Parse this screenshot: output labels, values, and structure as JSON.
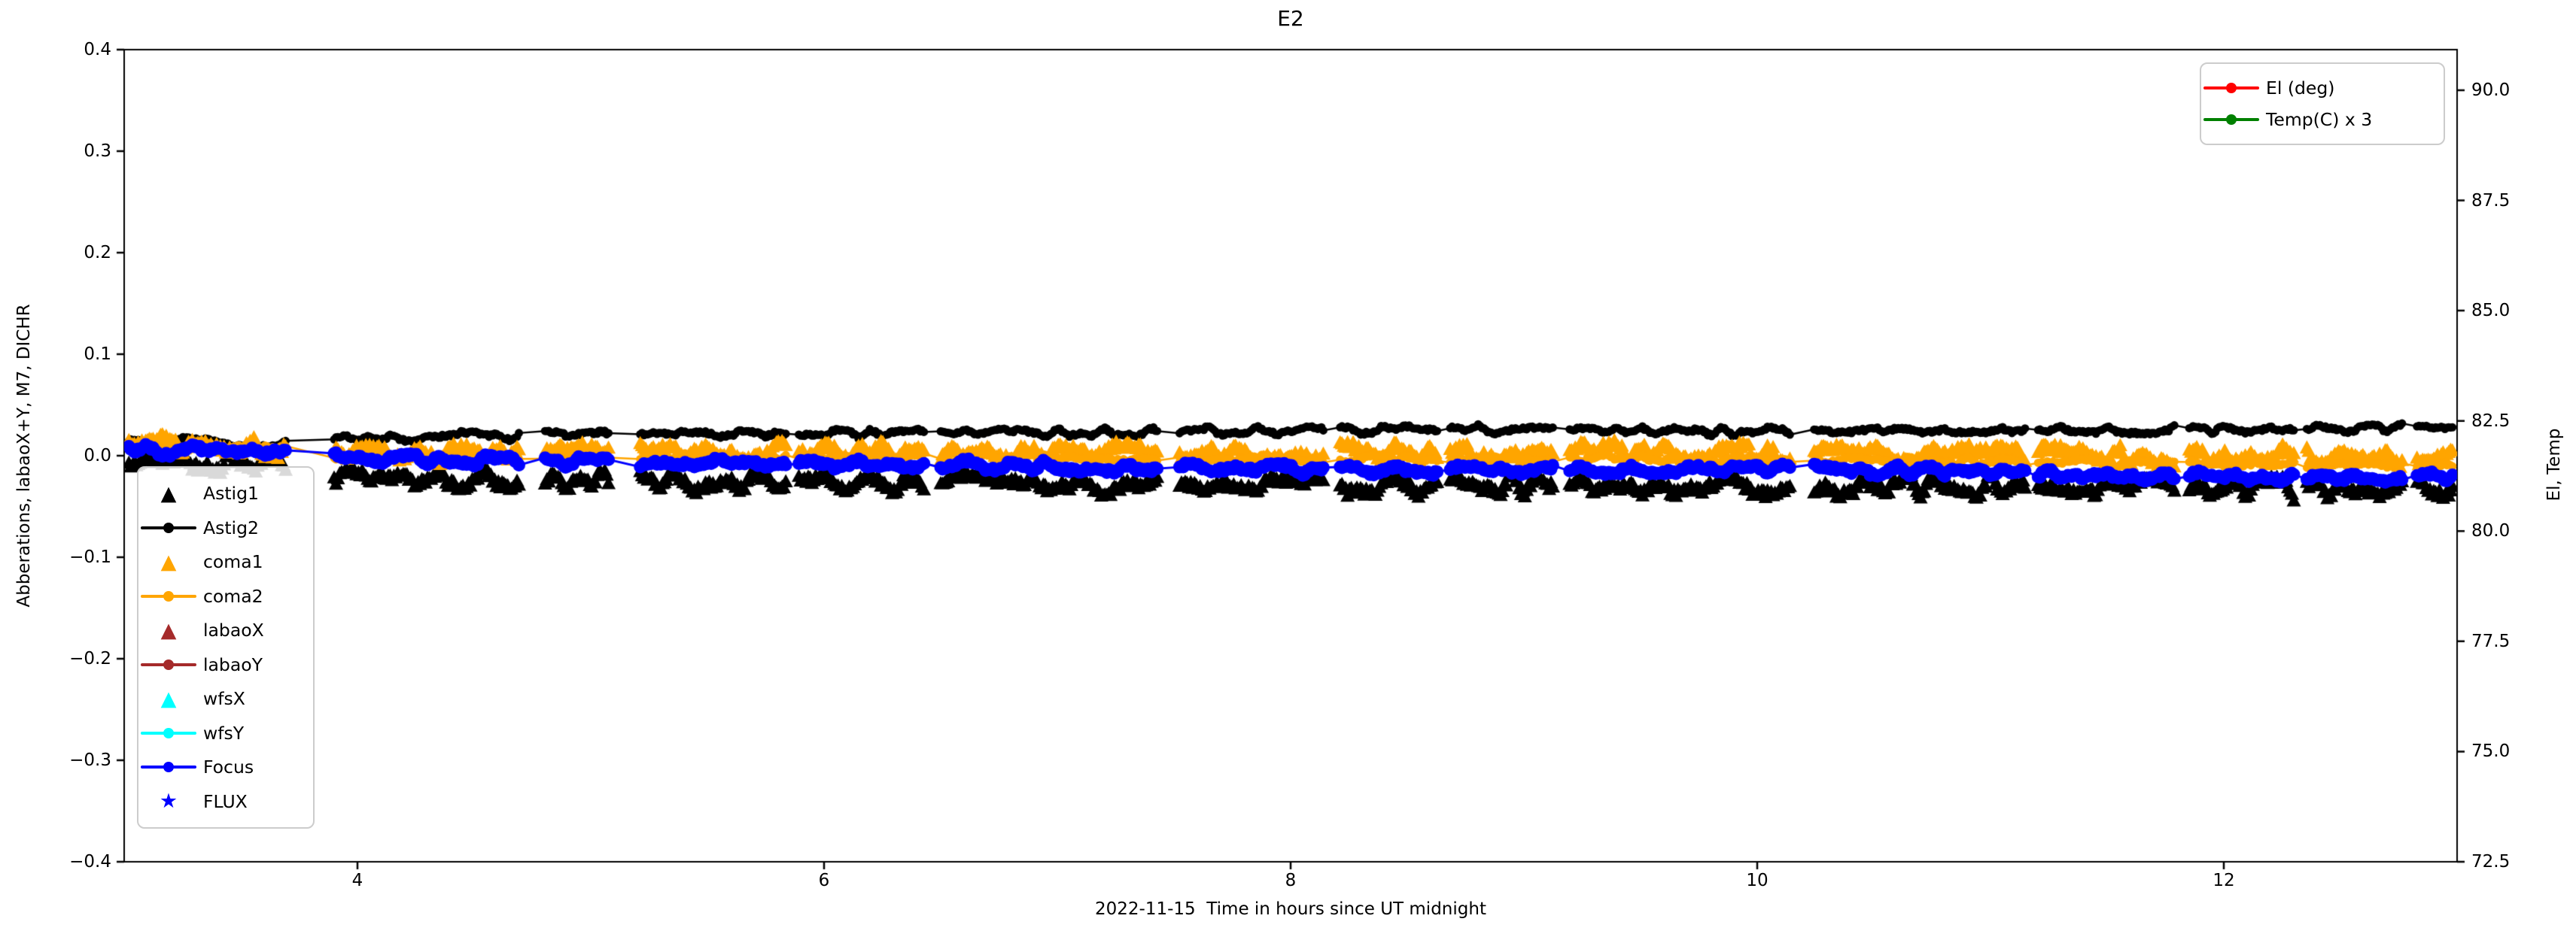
{
  "chart_data": {
    "type": "scatter",
    "title": "E2",
    "xlabel": "2022-11-15  Time in hours since UT midnight",
    "ylabel_left": "Abberations, labaoX+Y, M7, DICHR",
    "ylabel_right": "El, Temp",
    "xlim": [
      3.0,
      13.0
    ],
    "ylim_left": [
      -0.4,
      0.4
    ],
    "ylim_right": [
      72.5,
      90.92
    ],
    "grid": false,
    "background": "#ffffff",
    "xticks": [
      {
        "value": 4,
        "label": "4"
      },
      {
        "value": 6,
        "label": "6"
      },
      {
        "value": 8,
        "label": "8"
      },
      {
        "value": 10,
        "label": "10"
      },
      {
        "value": 12,
        "label": "12"
      }
    ],
    "yticks_left": [
      {
        "value": 0.4,
        "label": "0.4"
      },
      {
        "value": 0.3,
        "label": "0.3"
      },
      {
        "value": 0.2,
        "label": "0.2"
      },
      {
        "value": 0.1,
        "label": "0.1"
      },
      {
        "value": 0.0,
        "label": "0.0"
      },
      {
        "value": -0.1,
        "label": "−0.1"
      },
      {
        "value": -0.2,
        "label": "−0.2"
      },
      {
        "value": -0.3,
        "label": "−0.3"
      },
      {
        "value": -0.4,
        "label": "−0.4"
      }
    ],
    "yticks_right": [
      {
        "value": 90.0,
        "label": "90.0"
      },
      {
        "value": 87.5,
        "label": "87.5"
      },
      {
        "value": 85.0,
        "label": "85.0"
      },
      {
        "value": 82.5,
        "label": "82.5"
      },
      {
        "value": 80.0,
        "label": "80.0"
      },
      {
        "value": 77.5,
        "label": "77.5"
      },
      {
        "value": 75.0,
        "label": "75.0"
      },
      {
        "value": 72.5,
        "label": "72.5"
      }
    ],
    "legend_left": {
      "position": "lower left",
      "items": [
        {
          "label": "Astig1",
          "color": "#000000",
          "handle": "triangle"
        },
        {
          "label": "Astig2",
          "color": "#000000",
          "handle": "line-circle"
        },
        {
          "label": "coma1",
          "color": "#FFA500",
          "handle": "triangle"
        },
        {
          "label": "coma2",
          "color": "#FFA500",
          "handle": "line-circle"
        },
        {
          "label": "labaoX",
          "color": "#A52A2A",
          "handle": "triangle"
        },
        {
          "label": "labaoY",
          "color": "#A52A2A",
          "handle": "line-circle"
        },
        {
          "label": "wfsX",
          "color": "#00FFFF",
          "handle": "triangle"
        },
        {
          "label": "wfsY",
          "color": "#00FFFF",
          "handle": "line-circle"
        },
        {
          "label": "Focus",
          "color": "#0000FF",
          "handle": "line-circle"
        },
        {
          "label": "FLUX",
          "color": "#0000FF",
          "handle": "star"
        }
      ]
    },
    "legend_right": {
      "position": "upper right",
      "items": [
        {
          "label": "El (deg)",
          "color": "#FF0000",
          "handle": "line-circle"
        },
        {
          "label": "Temp(C) x 3",
          "color": "#008000",
          "handle": "line-circle"
        }
      ]
    },
    "sampling": {
      "t_start": 3.02,
      "t_end": 12.98,
      "dt": 0.008,
      "noise_grid": 0.05,
      "seed": 11
    },
    "gaps": [
      [
        3.7,
        3.9
      ],
      [
        4.7,
        4.8
      ],
      [
        5.08,
        5.21
      ],
      [
        5.84,
        5.89
      ],
      [
        6.43,
        6.5
      ],
      [
        7.43,
        7.52
      ],
      [
        8.14,
        8.21
      ],
      [
        8.63,
        8.68
      ],
      [
        9.13,
        9.19
      ],
      [
        10.14,
        10.24
      ],
      [
        11.15,
        11.2
      ],
      [
        11.79,
        11.85
      ],
      [
        12.3,
        12.35
      ],
      [
        12.77,
        12.82
      ]
    ],
    "series": [
      {
        "name": "Astig1",
        "visible": true,
        "color": "#000000",
        "marker": "triangle",
        "marker_size": 10,
        "line": false,
        "line_width": 0,
        "noise_amp": 0.01,
        "jitter": 0.004,
        "seed": 1,
        "trend": [
          [
            3,
            -0.006
          ],
          [
            3.7,
            -0.008
          ],
          [
            3.95,
            -0.022
          ],
          [
            5,
            -0.026
          ],
          [
            7,
            -0.028
          ],
          [
            8.3,
            -0.031
          ],
          [
            9.3,
            -0.028
          ],
          [
            10.7,
            -0.03
          ],
          [
            12,
            -0.031
          ],
          [
            13,
            -0.034
          ]
        ]
      },
      {
        "name": "Astig2",
        "visible": true,
        "color": "#000000",
        "marker": "circle",
        "marker_size": 5.5,
        "line": true,
        "line_width": 2.5,
        "noise_amp": 0.004,
        "jitter": 0.0015,
        "seed": 2,
        "trend": [
          [
            3,
            0.014
          ],
          [
            3.7,
            0.012
          ],
          [
            3.95,
            0.017
          ],
          [
            5,
            0.021
          ],
          [
            6.5,
            0.022
          ],
          [
            8,
            0.025
          ],
          [
            9,
            0.026
          ],
          [
            10,
            0.024
          ],
          [
            11,
            0.025
          ],
          [
            12,
            0.026
          ],
          [
            13,
            0.028
          ]
        ]
      },
      {
        "name": "coma1",
        "visible": true,
        "color": "#FFA500",
        "marker": "triangle",
        "marker_size": 10,
        "line": false,
        "line_width": 0,
        "noise_amp": 0.009,
        "jitter": 0.004,
        "seed": 3,
        "trend": [
          [
            3,
            0.01
          ],
          [
            3.7,
            0.008
          ],
          [
            3.95,
            0.001
          ],
          [
            5,
            0.002
          ],
          [
            6.5,
            0.004
          ],
          [
            8,
            0.002
          ],
          [
            9.5,
            0.003
          ],
          [
            11,
            0.0
          ],
          [
            12,
            -0.001
          ],
          [
            13,
            -0.002
          ]
        ]
      },
      {
        "name": "coma2",
        "visible": true,
        "color": "#FFA500",
        "marker": "circle",
        "marker_size": 5.5,
        "line": true,
        "line_width": 2.5,
        "noise_amp": 0.0035,
        "jitter": 0.0015,
        "seed": 4,
        "trend": [
          [
            3,
            0.007
          ],
          [
            3.7,
            0.006
          ],
          [
            3.95,
            -0.003
          ],
          [
            5,
            -0.002
          ],
          [
            6.5,
            0.0
          ],
          [
            8,
            -0.003
          ],
          [
            9.5,
            -0.003
          ],
          [
            11,
            -0.006
          ],
          [
            12,
            -0.008
          ],
          [
            13,
            -0.011
          ]
        ]
      },
      {
        "name": "labaoX",
        "visible": false,
        "color": "#A52A2A",
        "marker": "triangle",
        "marker_size": 10,
        "line": false,
        "line_width": 0,
        "noise_amp": 0,
        "jitter": 0,
        "seed": 5,
        "trend": []
      },
      {
        "name": "labaoY",
        "visible": false,
        "color": "#A52A2A",
        "marker": "circle",
        "marker_size": 5.5,
        "line": true,
        "line_width": 2.5,
        "noise_amp": 0,
        "jitter": 0,
        "seed": 6,
        "trend": []
      },
      {
        "name": "wfsX",
        "visible": false,
        "color": "#00FFFF",
        "marker": "triangle",
        "marker_size": 10,
        "line": false,
        "line_width": 0,
        "noise_amp": 0,
        "jitter": 0,
        "seed": 7,
        "trend": []
      },
      {
        "name": "wfsY",
        "visible": false,
        "color": "#00FFFF",
        "marker": "circle",
        "marker_size": 5.5,
        "line": true,
        "line_width": 2.5,
        "noise_amp": 0,
        "jitter": 0,
        "seed": 8,
        "trend": []
      },
      {
        "name": "Focus",
        "visible": true,
        "color": "#0000FF",
        "marker": "circle",
        "marker_size": 8.5,
        "line": true,
        "line_width": 3,
        "noise_amp": 0.005,
        "jitter": 0.002,
        "seed": 9,
        "trend": [
          [
            3,
            0.006
          ],
          [
            3.7,
            0.004
          ],
          [
            3.95,
            -0.004
          ],
          [
            5,
            -0.006
          ],
          [
            6.5,
            -0.009
          ],
          [
            8,
            -0.013
          ],
          [
            9,
            -0.014
          ],
          [
            10,
            -0.013
          ],
          [
            11,
            -0.016
          ],
          [
            12,
            -0.02
          ],
          [
            13,
            -0.022
          ]
        ]
      },
      {
        "name": "FLUX",
        "visible": false,
        "color": "#0000FF",
        "marker": "star",
        "marker_size": 10,
        "line": false,
        "line_width": 0,
        "noise_amp": 0,
        "jitter": 0,
        "seed": 10,
        "trend": []
      },
      {
        "name": "El (deg)",
        "visible": false,
        "color": "#FF0000",
        "marker": "circle",
        "marker_size": 6,
        "line": true,
        "line_width": 2.5,
        "axis": "right",
        "noise_amp": 0,
        "jitter": 0,
        "seed": 11,
        "trend": []
      },
      {
        "name": "Temp(C) x 3",
        "visible": false,
        "color": "#008000",
        "marker": "circle",
        "marker_size": 6,
        "line": true,
        "line_width": 2.5,
        "axis": "right",
        "noise_amp": 0,
        "jitter": 0,
        "seed": 12,
        "trend": []
      }
    ]
  }
}
